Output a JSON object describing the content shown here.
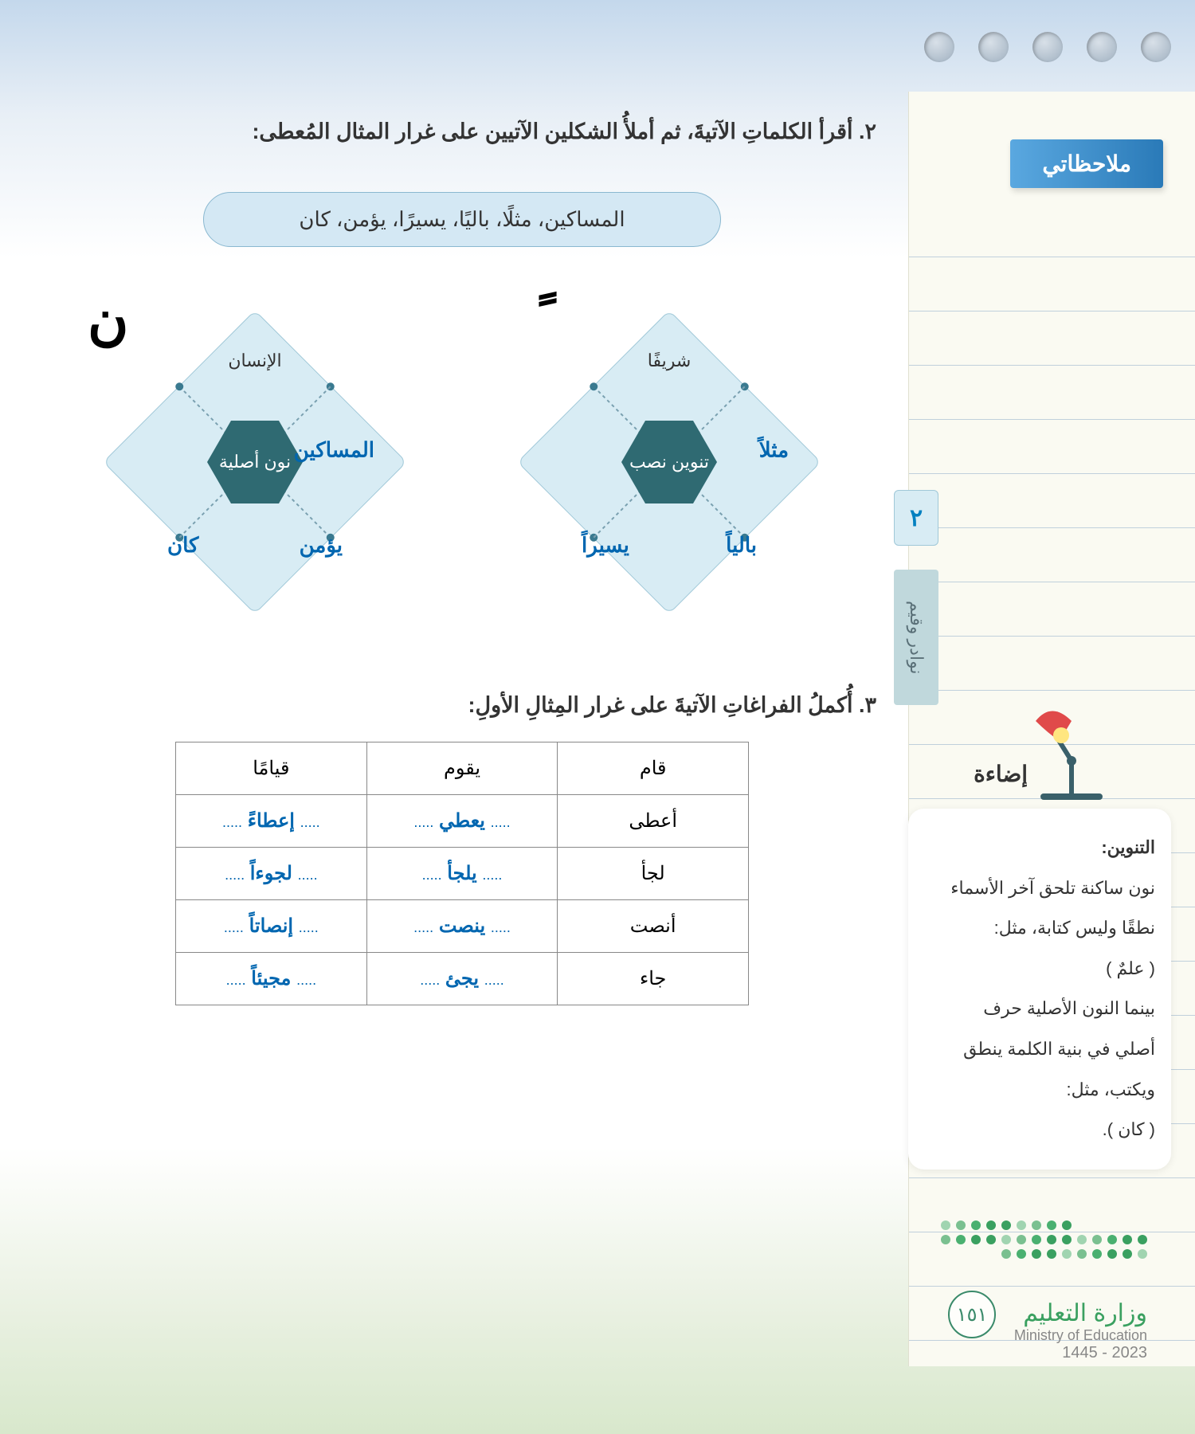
{
  "sidebar": {
    "notes_title": "ملاحظاتي",
    "chapter_num": "٢",
    "unit_label": "نوادر وقيم",
    "illum_label": "إضاءة",
    "note": {
      "title": "التنوين:",
      "l1": "نون ساكنة تلحق آخر الأسماء",
      "l2": "نطقًا وليس كتابة، مثل:",
      "l3": "( علمٌ )",
      "l4": "بينما النون الأصلية حرف",
      "l5": "أصلي في بنية الكلمة ينطق",
      "l6": "ويكتب، مثل:",
      "l7": "( كان )."
    }
  },
  "main": {
    "instr2": "٢. أقرأ الكلماتِ الآتيةَ، ثم أملأُ الشكلين الآتيين على غرار المثال المُعطى:",
    "pill_words": "المساكين، مثلًا، باليًا، يسيرًا، يؤمن، كان",
    "d1": {
      "corner": "ً",
      "center": "تنوين نصب",
      "top": "شريفًا",
      "right": "مثلاً",
      "bottom_r": "بالياً",
      "bottom_l": "يسيراً"
    },
    "d2": {
      "corner": "ن",
      "center": "نون أصلية",
      "top": "الإنسان",
      "right": "المساكين",
      "bottom_r": "يؤمن",
      "bottom_l": "كان"
    },
    "instr3": "٣. أُكملُ الفراغاتِ الآتيةَ على غرار المِثالِ الأولِ:",
    "table": {
      "header_style": {
        "background": "#ffffff",
        "font_weight": "normal"
      },
      "rows": [
        {
          "c1": "قام",
          "c2": "يقوم",
          "c3": "قيامًا",
          "answer": false
        },
        {
          "c1": "أعطى",
          "c2": "يعطي",
          "c3": "إعطاءً",
          "answer": true
        },
        {
          "c1": "لجأ",
          "c2": "يلجأ",
          "c3": "لجوءاً",
          "answer": true
        },
        {
          "c1": "أنصت",
          "c2": "ينصت",
          "c3": "إنصاتاً",
          "answer": true
        },
        {
          "c1": "جاء",
          "c2": "يجئ",
          "c3": "مجيئاً",
          "answer": true
        }
      ]
    }
  },
  "footer": {
    "ministry_ar": "وزارة التعليم",
    "ministry_en": "Ministry of Education",
    "year": "2023 - 1445",
    "page": "١٥١",
    "dot_colors": [
      "#3aa060",
      "#4ab070",
      "#7ac090",
      "#a0d4b0",
      "#3aa060"
    ]
  },
  "colors": {
    "accent_blue": "#0066b0",
    "diamond_fill": "#d8ecf4",
    "hex_fill": "#2f6a72",
    "green": "#3aa060"
  }
}
